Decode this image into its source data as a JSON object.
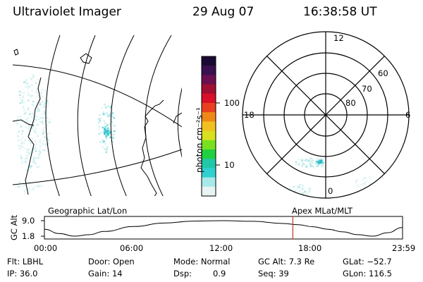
{
  "header": {
    "instrument": "Ultraviolet Imager",
    "date": "29 Aug 07",
    "time": "16:38:58 UT"
  },
  "colorbar": {
    "unit_label": "photon cm⁻²s⁻¹",
    "ticks": [
      "100",
      "10"
    ],
    "colors": [
      "#1a0a33",
      "#3a1050",
      "#6a1050",
      "#a01030",
      "#d8102a",
      "#e84020",
      "#f08818",
      "#f0c020",
      "#d8e020",
      "#78e020",
      "#20d040",
      "#20c8a8",
      "#30d0d0",
      "#a8e8e8",
      "#e8f4f4"
    ]
  },
  "polar_plot": {
    "labels": {
      "top": "12",
      "right": "6",
      "bottom": "0",
      "left": "18",
      "lat60": "60",
      "lat70": "70",
      "lat80": "80"
    }
  },
  "timeline": {
    "left_title": "Geographic Lat/Lon",
    "right_title": "Apex MLat/MLT",
    "y_axis_label": "GC Alt",
    "y_ticks": [
      "9.0",
      "1.8"
    ],
    "x_ticks": [
      "00:00",
      "06:00",
      "12:00",
      "18:00",
      "23:59"
    ]
  },
  "info": {
    "flt": "Flt: LBHL",
    "ip": "IP: 36.0",
    "door": "Door: Open",
    "gain": "Gain: 14",
    "mode": "Mode: Normal",
    "dsp_label": "Dsp:",
    "dsp_value": "0.9",
    "gc_alt": "GC Alt: 7.3 Re",
    "seq": "Seq: 39",
    "glat": "GLat: −52.7",
    "glon": "GLon: 116.5"
  },
  "chart_data": {
    "type": "line",
    "title": "",
    "xlabel": "",
    "ylabel": "GC Alt",
    "x_ticks": [
      "00:00",
      "06:00",
      "12:00",
      "18:00",
      "23:59"
    ],
    "y_ticks": [
      "9.0",
      "1.8"
    ],
    "ylim": [
      1.8,
      9.0
    ],
    "x_hours": [
      0,
      1,
      2,
      3,
      4,
      6,
      8,
      10,
      12,
      14,
      16,
      17,
      18,
      19,
      20,
      21,
      22,
      23,
      23.98
    ],
    "values": [
      5.0,
      3.0,
      1.8,
      2.5,
      4.0,
      6.3,
      7.9,
      8.8,
      9.0,
      8.7,
      7.7,
      7.1,
      6.2,
      5.0,
      3.8,
      2.5,
      1.8,
      3.4,
      5.8
    ],
    "current_time_hours": 16.65
  }
}
